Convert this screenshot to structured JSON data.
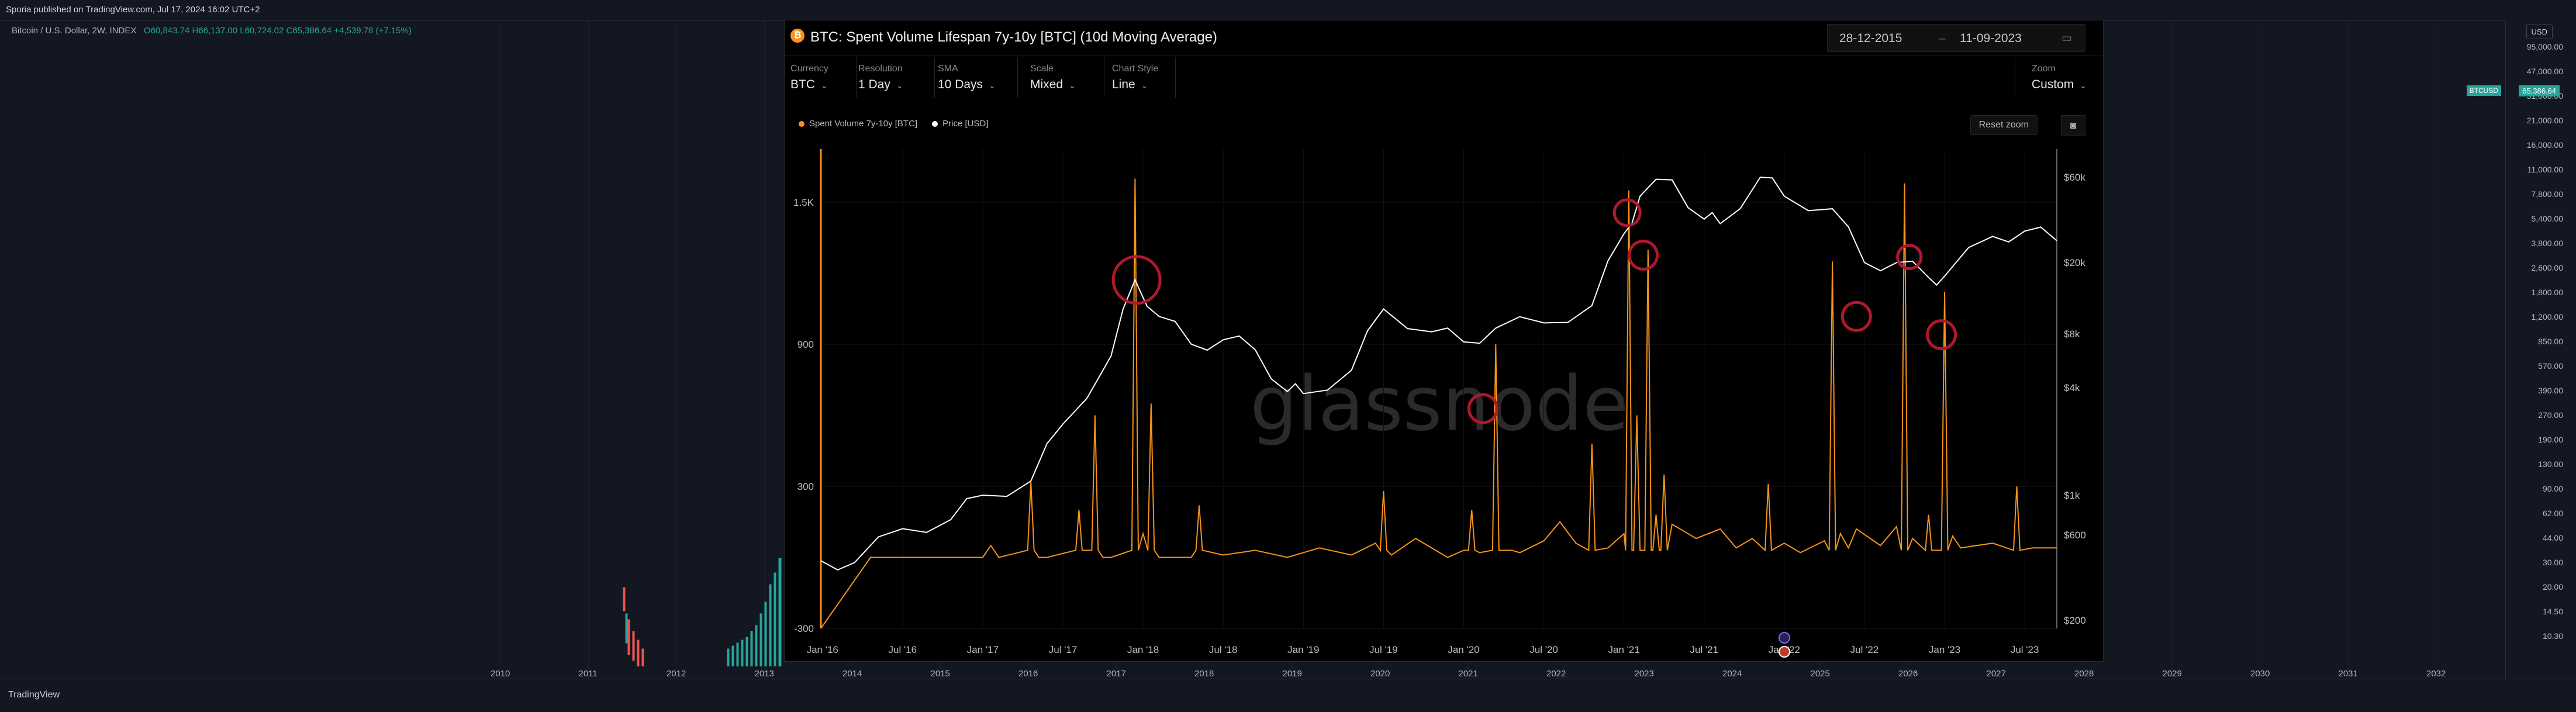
{
  "topbar": {
    "text": "Sporia published on TradingView.com, Jul 17, 2024 16:02 UTC+2"
  },
  "symbol": {
    "name": "Bitcoin / U.S. Dollar, 2W, INDEX",
    "open": "O60,843.74",
    "high": "H66,137.00",
    "low": "L60,724.02",
    "close": "C65,386.64",
    "change": "+4,539.78 (+7.15%)"
  },
  "price_axis": {
    "currency": "USD",
    "current_price": "65,386.64",
    "badge_symbol": "BTCUSD",
    "labels": [
      "95,000.00",
      "47,000.00",
      "31,000.00",
      "21,000.00",
      "16,000.00",
      "11,000.00",
      "7,800.00",
      "5,400.00",
      "3,800.00",
      "2,600.00",
      "1,800.00",
      "1,200.00",
      "850.00",
      "570.00",
      "390.00",
      "270.00",
      "190.00",
      "130.00",
      "90.00",
      "62.00",
      "44.00",
      "30.00",
      "20.00",
      "14.50",
      "10.30"
    ]
  },
  "time_axis": {
    "labels": [
      "2010",
      "2011",
      "2012",
      "2013",
      "2014",
      "2015",
      "2016",
      "2017",
      "2018",
      "2019",
      "2020",
      "2021",
      "2022",
      "2023",
      "2024",
      "2025",
      "2026",
      "2027",
      "2028",
      "2029",
      "2030",
      "2031",
      "2032"
    ]
  },
  "footer": {
    "brand": "TradingView"
  },
  "glassnode": {
    "title": "BTC: Spent Volume Lifespan 7y-10y [BTC] (10d Moving Average)",
    "date_from": "28-12-2015",
    "date_to": "11-09-2023",
    "date_sep": "–",
    "controls": [
      {
        "label": "Currency",
        "value": "BTC"
      },
      {
        "label": "Resolution",
        "value": "1 Day"
      },
      {
        "label": "SMA",
        "value": "10 Days"
      },
      {
        "label": "Scale",
        "value": "Mixed"
      },
      {
        "label": "Chart Style",
        "value": "Line"
      }
    ],
    "zoom": {
      "label": "Zoom",
      "value": "Custom"
    },
    "reset_zoom": "Reset zoom",
    "legend": [
      {
        "name": "Spent Volume 7y-10y [BTC]",
        "color": "#f7931a"
      },
      {
        "name": "Price [USD]",
        "color": "#ffffff"
      }
    ],
    "watermark": "glassnode",
    "colors": {
      "series": "#f7931a",
      "price": "#ffffff",
      "highlight": "#b0182c"
    }
  },
  "chart_data": {
    "type": "line",
    "title": "BTC: Spent Volume Lifespan 7y-10y [BTC] (10d Moving Average)",
    "x_ticks": [
      "Jan '16",
      "Jul '16",
      "Jan '17",
      "Jul '17",
      "Jan '18",
      "Jul '18",
      "Jan '19",
      "Jul '19",
      "Jan '20",
      "Jul '20",
      "Jan '21",
      "Jul '21",
      "Jan '22",
      "Jul '22",
      "Jan '23",
      "Jul '23"
    ],
    "y_left": {
      "ticks": [
        "-300",
        "300",
        "900",
        "1.5K"
      ],
      "ylim": [
        -300,
        1700
      ]
    },
    "y_right": {
      "ticks": [
        "$200",
        "$600",
        "$1k",
        "$4k",
        "$8k",
        "$20k",
        "$60k"
      ],
      "scale": "log",
      "ylim": [
        180,
        80000
      ]
    },
    "series": [
      {
        "name": "Spent Volume 7y-10y [BTC]",
        "axis": "left",
        "x": [
          2015.99,
          2016.3,
          2016.8,
          2017.0,
          2017.05,
          2017.1,
          2017.3,
          2017.35,
          2017.4,
          2017.6,
          2017.7,
          2017.75,
          2017.8,
          2017.95,
          2018.0,
          2018.05,
          2018.1,
          2018.3,
          2018.35,
          2018.5,
          2018.7,
          2018.9,
          2019.1,
          2019.3,
          2019.45,
          2019.5,
          2019.55,
          2019.7,
          2019.9,
          2020.0,
          2020.05,
          2020.1,
          2020.2,
          2020.3,
          2020.35,
          2020.5,
          2020.6,
          2020.7,
          2020.8,
          2020.9,
          2021.0,
          2021.03,
          2021.08,
          2021.15,
          2021.2,
          2021.25,
          2021.3,
          2021.45,
          2021.6,
          2021.7,
          2021.8,
          2021.9,
          2022.0,
          2022.1,
          2022.25,
          2022.3,
          2022.35,
          2022.4,
          2022.45,
          2022.6,
          2022.7,
          2022.75,
          2022.8,
          2022.9,
          2023.0,
          2023.05,
          2023.1,
          2023.3,
          2023.45,
          2023.55,
          2023.7
        ],
        "values": [
          -300,
          0,
          0,
          0,
          50,
          0,
          320,
          0,
          0,
          200,
          600,
          0,
          0,
          1600,
          100,
          650,
          0,
          0,
          220,
          10,
          30,
          0,
          40,
          10,
          60,
          280,
          10,
          80,
          0,
          30,
          200,
          20,
          900,
          30,
          20,
          70,
          150,
          60,
          480,
          40,
          100,
          1550,
          600,
          1300,
          180,
          350,
          140,
          80,
          120,
          40,
          80,
          310,
          60,
          20,
          70,
          1250,
          100,
          40,
          120,
          50,
          130,
          1580,
          80,
          180,
          1120,
          90,
          40,
          60,
          300,
          40,
          40
        ]
      },
      {
        "name": "Price [USD]",
        "axis": "right",
        "x": [
          2015.99,
          2016.2,
          2016.5,
          2016.8,
          2017.0,
          2017.3,
          2017.5,
          2017.8,
          2017.95,
          2018.1,
          2018.3,
          2018.5,
          2018.7,
          2018.9,
          2019.0,
          2019.3,
          2019.5,
          2019.8,
          2020.0,
          2020.2,
          2020.5,
          2020.8,
          2021.0,
          2021.1,
          2021.3,
          2021.5,
          2021.6,
          2021.85,
          2022.0,
          2022.3,
          2022.5,
          2022.7,
          2022.9,
          2023.0,
          2023.3,
          2023.5,
          2023.7
        ],
        "values": [
          430,
          420,
          650,
          730,
          1000,
          1200,
          2500,
          6000,
          16000,
          10000,
          7000,
          7400,
          6500,
          3800,
          3700,
          5000,
          11000,
          8200,
          7200,
          8600,
          9200,
          11500,
          29000,
          47000,
          58000,
          35000,
          33000,
          60000,
          47000,
          40000,
          20000,
          20000,
          16500,
          16800,
          28000,
          30000,
          26500
        ]
      }
    ],
    "annotations": [
      "Jan '18 peak",
      "early 2020 spike",
      "Jan '21 peak",
      "Feb '21 peak",
      "Jun '22 spike",
      "Nov '22 spike",
      "Feb '23 spike"
    ]
  }
}
